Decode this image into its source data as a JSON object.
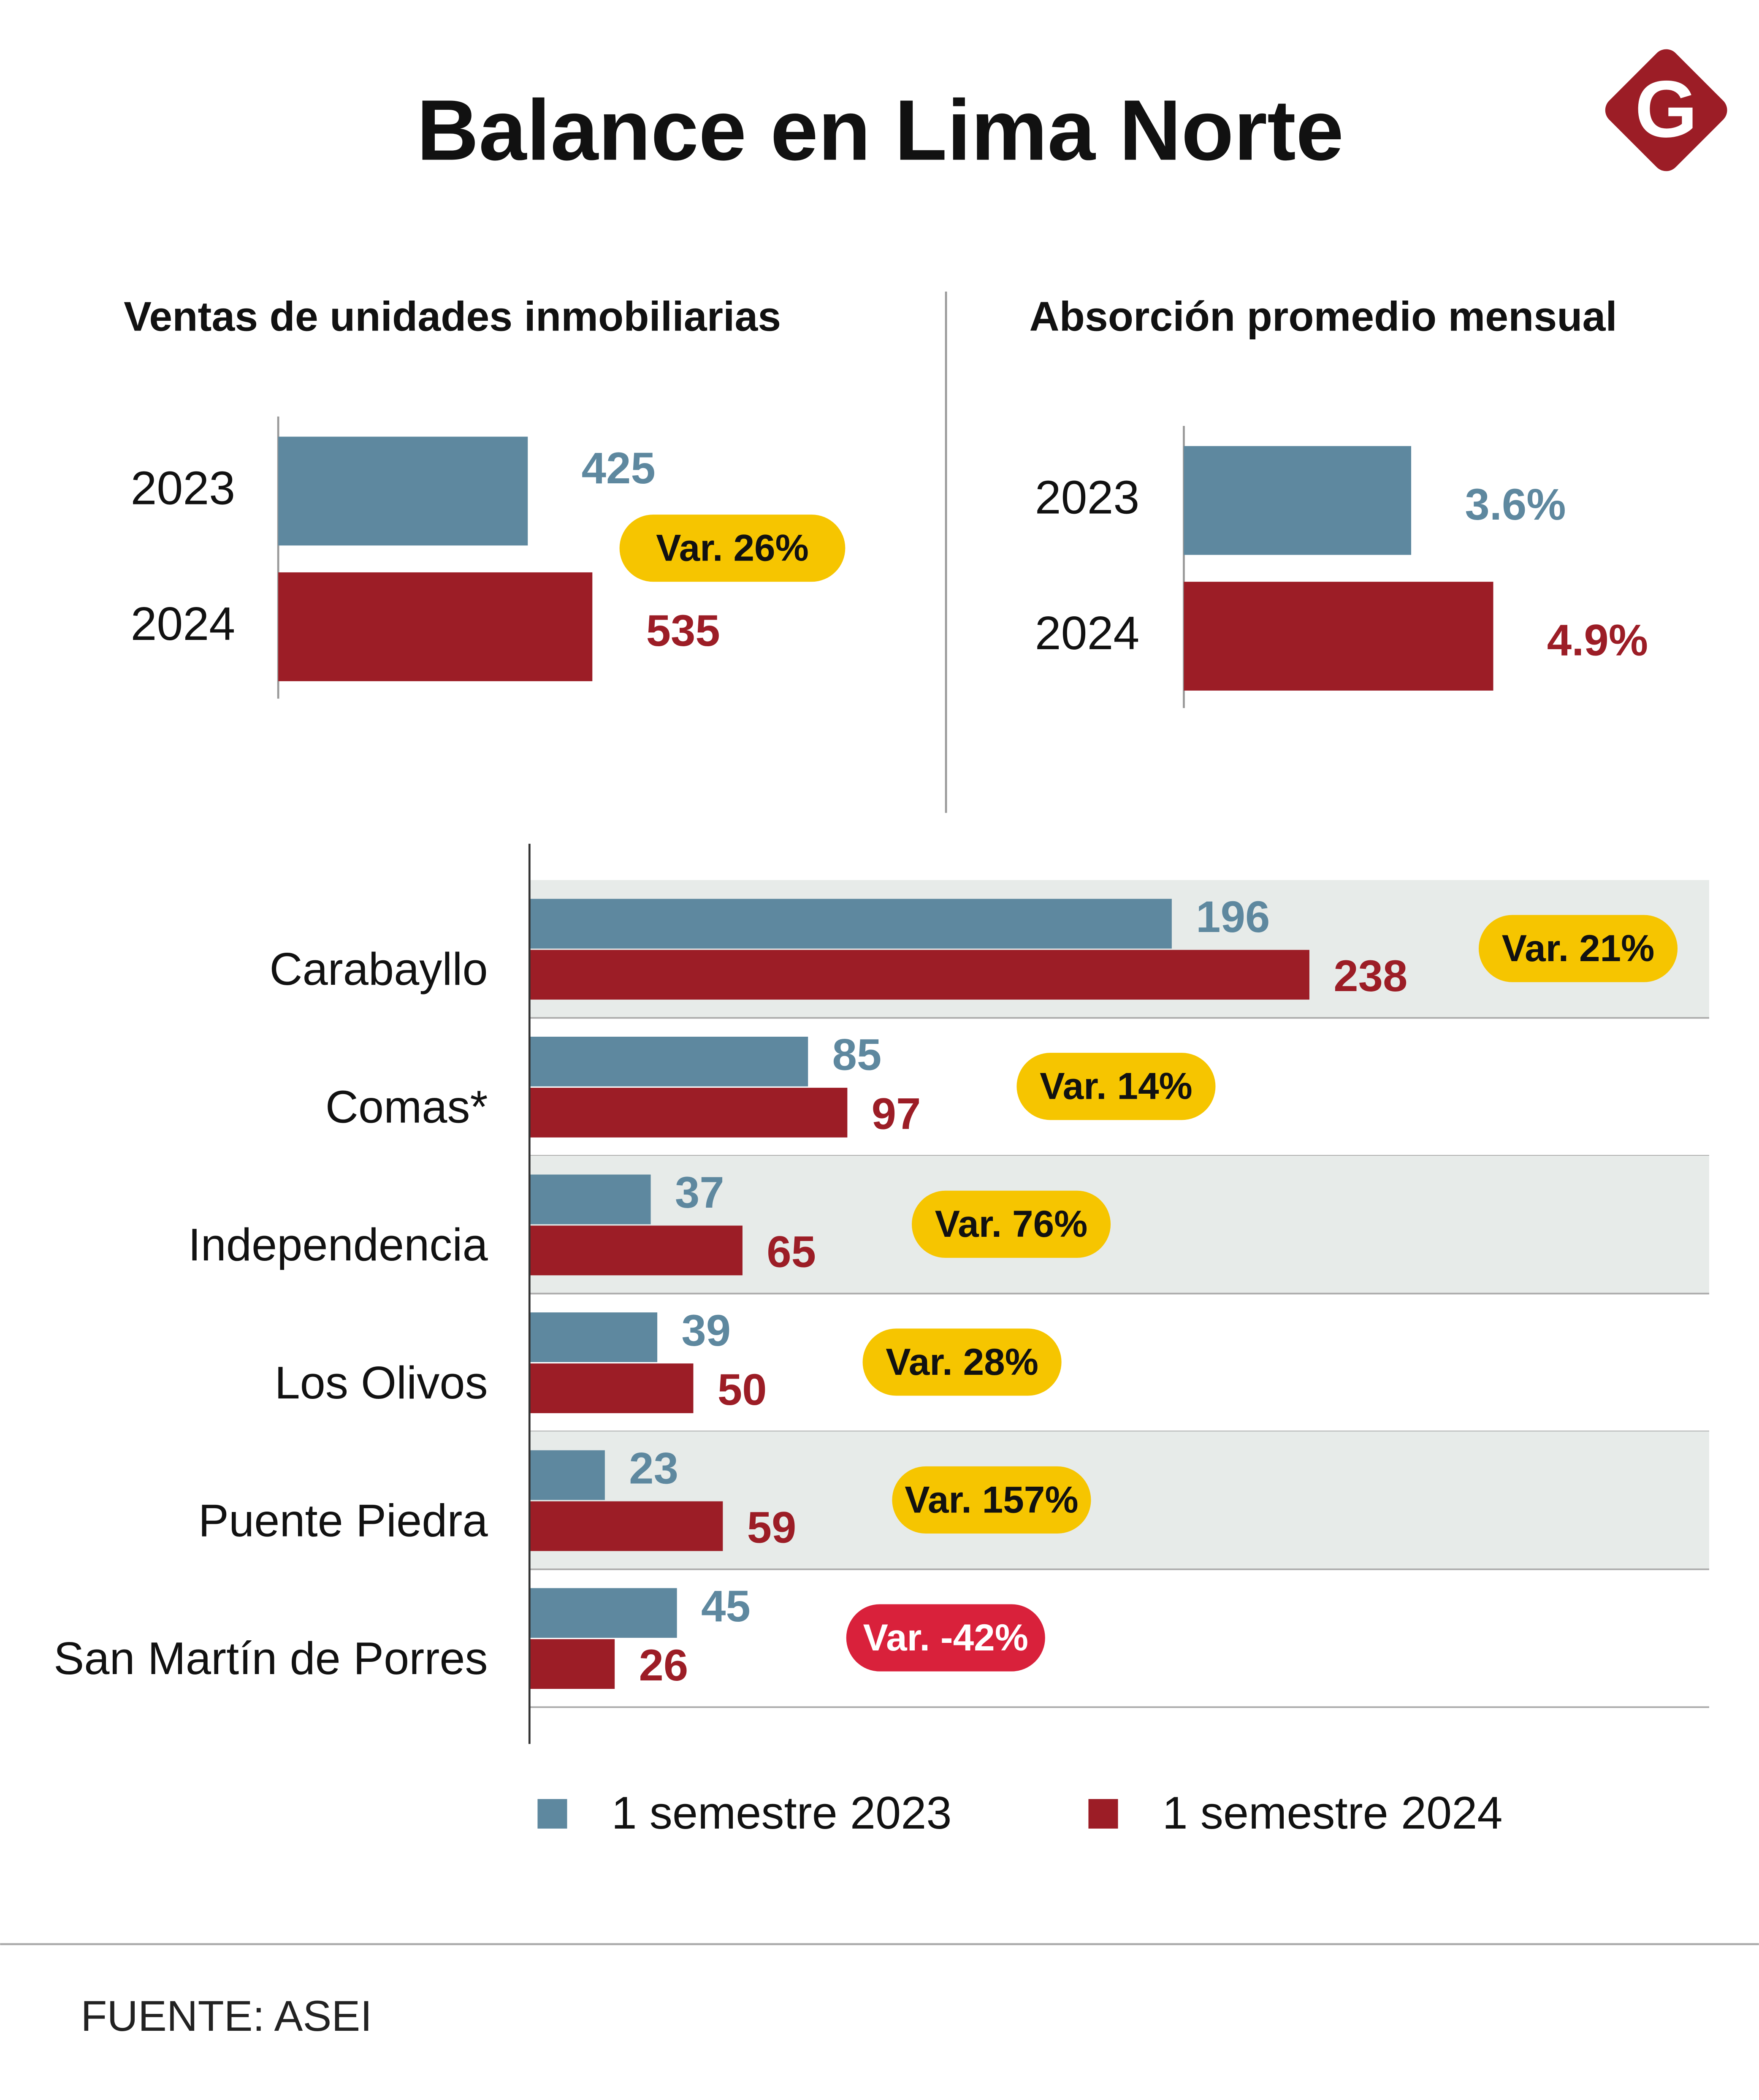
{
  "title": "Balance en Lima Norte",
  "logo": "G",
  "source": "FUENTE: ASEI",
  "chart_data": [
    {
      "type": "hbar",
      "title": "Ventas de unidades inmobiliarias",
      "categories": [
        "2023",
        "2024"
      ],
      "values": [
        425,
        535
      ],
      "colors": [
        "#5e889f",
        "#9c1d26"
      ],
      "xlim": [
        0,
        1000
      ],
      "annotation": {
        "text": "Var. 26%",
        "color": "#f6c500",
        "text_color": "#111111"
      }
    },
    {
      "type": "hbar",
      "title": "Absorción promedio mensual",
      "categories": [
        "2023",
        "2024"
      ],
      "values": [
        3.6,
        4.9
      ],
      "value_labels": [
        "3.6%",
        "4.9%"
      ],
      "colors": [
        "#5e889f",
        "#9c1d26"
      ],
      "xlim": [
        0,
        8
      ]
    },
    {
      "type": "grouped_hbar",
      "categories": [
        "Carabayllo",
        "Comas*",
        "Independencia",
        "Los Olivos",
        "Puente Piedra",
        "San Martín de Porres"
      ],
      "series": [
        {
          "name": "1 semestre 2023",
          "color": "#5e889f",
          "values": [
            196,
            85,
            37,
            39,
            23,
            45
          ]
        },
        {
          "name": "1 semestre 2024",
          "color": "#9c1d26",
          "values": [
            238,
            97,
            65,
            50,
            59,
            26
          ]
        }
      ],
      "xlim": [
        0,
        360
      ],
      "annotations": [
        {
          "text": "Var. 21%",
          "color": "#f6c500",
          "text_color": "#111111"
        },
        {
          "text": "Var. 14%",
          "color": "#f6c500",
          "text_color": "#111111"
        },
        {
          "text": "Var. 76%",
          "color": "#f6c500",
          "text_color": "#111111"
        },
        {
          "text": "Var. 28%",
          "color": "#f6c500",
          "text_color": "#111111"
        },
        {
          "text": "Var. 157%",
          "color": "#f6c500",
          "text_color": "#111111"
        },
        {
          "text": "Var. -42%",
          "color": "#d9213b",
          "text_color": "#ffffff"
        }
      ],
      "legend": "bottom"
    }
  ]
}
